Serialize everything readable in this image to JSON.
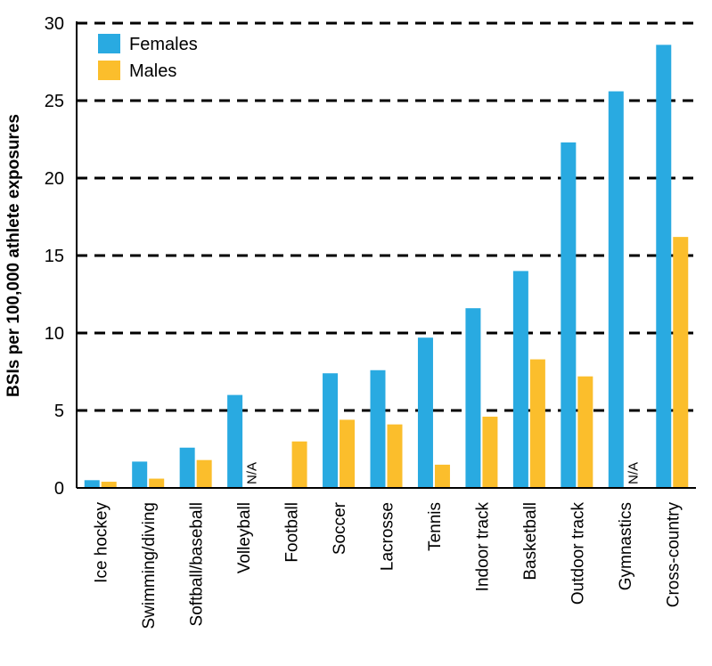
{
  "chart_data": {
    "type": "bar",
    "title": "",
    "xlabel": "",
    "ylabel": "BSIs per 100,000 athlete exposures",
    "ylim": [
      0,
      30
    ],
    "yticks": [
      0,
      5,
      10,
      15,
      20,
      25,
      30
    ],
    "grid": "dashed horizontal",
    "legend_position": "top-left",
    "categories": [
      "Ice hockey",
      "Swimming/diving",
      "Softball/baseball",
      "Volleyball",
      "Football",
      "Soccer",
      "Lacrosse",
      "Tennis",
      "Indoor track",
      "Basketball",
      "Outdoor track",
      "Gymnastics",
      "Cross-country"
    ],
    "series": [
      {
        "name": "Females",
        "color": "#29aae1",
        "values": [
          0.5,
          1.7,
          2.6,
          6.0,
          null,
          7.4,
          7.6,
          9.7,
          11.6,
          14.0,
          22.3,
          25.6,
          28.6
        ]
      },
      {
        "name": "Males",
        "color": "#fbbe2c",
        "values": [
          0.4,
          0.6,
          1.8,
          null,
          3.0,
          4.4,
          4.1,
          1.5,
          4.6,
          8.3,
          7.2,
          null,
          16.2
        ]
      }
    ],
    "annotations": [
      {
        "category": "Volleyball",
        "series": "Males",
        "text": "N/A"
      },
      {
        "category": "Gymnastics",
        "series": "Males",
        "text": "N/A"
      }
    ]
  }
}
